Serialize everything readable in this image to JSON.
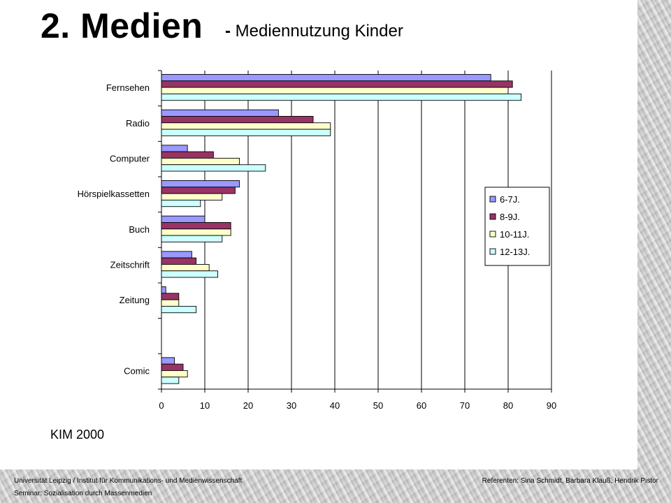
{
  "slide": {
    "title": "2. Medien",
    "subtitle_dash": "-",
    "subtitle": "Mediennutzung Kinder",
    "source": "KIM 2000"
  },
  "footer": {
    "left_line1": "Universität Leipzig / Institut für Kommunikations- und Medienwissenschaft",
    "left_line2": "Seminar: Sozialisation durch Massenmedien",
    "right": "Referenten: Sina Schmidt, Barbara Klauß, Hendrik Pistor"
  },
  "chart_data": {
    "type": "bar",
    "orientation": "horizontal",
    "title": "",
    "xlabel": "",
    "ylabel": "",
    "xlim": [
      0,
      90
    ],
    "xticks": [
      0,
      10,
      20,
      30,
      40,
      50,
      60,
      70,
      80,
      90
    ],
    "grid": "vertical",
    "legend": "right",
    "category_slots": [
      "Fernsehen",
      "Radio",
      "Computer",
      "Hörspielkassetten",
      "Buch",
      "Zeitschrift",
      "Zeitung",
      "",
      "Comic"
    ],
    "categories": [
      "Fernsehen",
      "Radio",
      "Computer",
      "Hörspielkassetten",
      "Buch",
      "Zeitschrift",
      "Zeitung",
      "Comic"
    ],
    "series": [
      {
        "name": "6-7J.",
        "color": "#9999ff",
        "values": [
          76,
          27,
          6,
          18,
          10,
          7,
          1,
          3
        ]
      },
      {
        "name": "8-9J.",
        "color": "#993366",
        "values": [
          81,
          35,
          12,
          17,
          16,
          8,
          4,
          5
        ]
      },
      {
        "name": "10-11J.",
        "color": "#ffffcc",
        "values": [
          80,
          39,
          18,
          14,
          16,
          11,
          4,
          6
        ]
      },
      {
        "name": "12-13J.",
        "color": "#ccffff",
        "values": [
          83,
          39,
          24,
          9,
          14,
          13,
          8,
          4
        ]
      }
    ]
  }
}
